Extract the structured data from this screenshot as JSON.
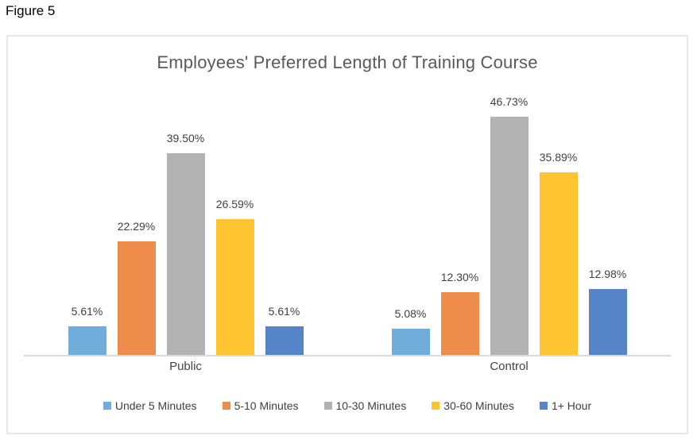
{
  "figure_label": "Figure 5",
  "chart_data": {
    "type": "bar",
    "title": "Employees' Preferred Length of Training Course",
    "categories": [
      "Public",
      "Control"
    ],
    "series": [
      {
        "name": "Under 5 Minutes",
        "color": "#70ADDB",
        "values": [
          5.61,
          5.08
        ],
        "labels": [
          "5.61%",
          "5.08%"
        ]
      },
      {
        "name": "5-10 Minutes",
        "color": "#EE8C4C",
        "values": [
          22.29,
          12.3
        ],
        "labels": [
          "22.29%",
          "12.30%"
        ]
      },
      {
        "name": "10-30 Minutes",
        "color": "#B3B3B3",
        "values": [
          39.5,
          46.73
        ],
        "labels": [
          "39.50%",
          "46.73%"
        ]
      },
      {
        "name": "30-60 Minutes",
        "color": "#FFC431",
        "values": [
          26.59,
          35.89
        ],
        "labels": [
          "26.59%",
          "35.89%"
        ]
      },
      {
        "name": "1+ Hour",
        "color": "#5585C8",
        "values": [
          5.61,
          12.98
        ],
        "labels": [
          "5.61%",
          "12.98%"
        ]
      }
    ],
    "xlabel": "",
    "ylabel": "",
    "ylim": [
      0,
      50
    ],
    "grid": false,
    "y_axis_visible": false,
    "data_labels_visible": true,
    "legend_position": "bottom",
    "frame_border_color": "#E7E7E7",
    "axis_line_color": "#D9D9D9",
    "title_color": "#595959",
    "label_color": "#3F3F3F"
  }
}
